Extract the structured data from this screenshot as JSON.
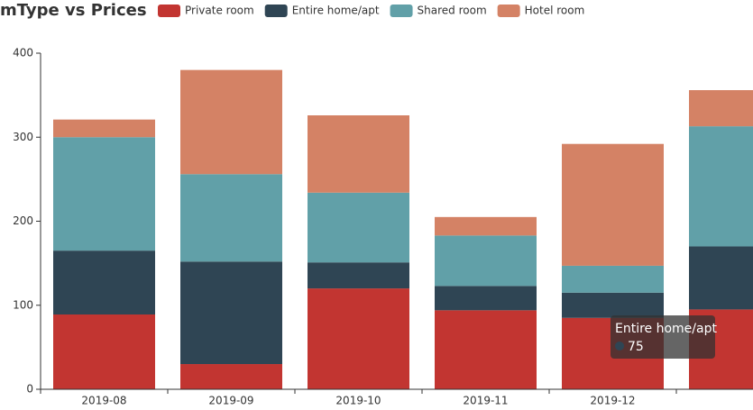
{
  "chart_data": {
    "type": "bar",
    "stacked": true,
    "title": "mType vs Prices",
    "categories": [
      "2019-08",
      "2019-09",
      "2019-10",
      "2019-11",
      "2019-12",
      null
    ],
    "series": [
      {
        "name": "Private room",
        "color": "#c23531",
        "values": [
          89,
          30,
          120,
          94,
          85,
          95
        ]
      },
      {
        "name": "Entire home/apt",
        "color": "#2f4554",
        "values": [
          76,
          122,
          31,
          29,
          30,
          75
        ]
      },
      {
        "name": "Shared room",
        "color": "#61a0a8",
        "values": [
          135,
          104,
          83,
          60,
          32,
          143
        ]
      },
      {
        "name": "Hotel room",
        "color": "#d48265",
        "values": [
          21,
          124,
          92,
          22,
          145,
          43
        ]
      }
    ],
    "ylim": [
      0,
      400
    ],
    "yticks": [
      0,
      100,
      200,
      300,
      400
    ],
    "grid": false,
    "tooltip": {
      "series": 1,
      "category": 5
    }
  }
}
